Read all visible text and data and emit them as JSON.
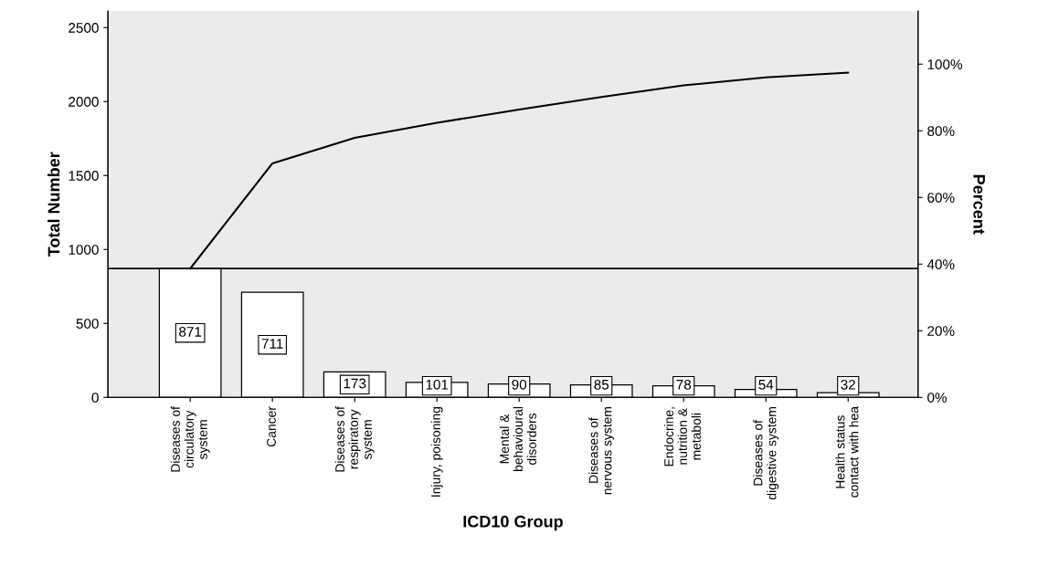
{
  "chart_data": {
    "type": "bar",
    "xlabel": "ICD10 Group",
    "ylabel": "Total Number",
    "y2label": "Percent",
    "categories": [
      "Diseases of\ncirculatory\nsystem",
      "Cancer",
      "Diseases of\nrespiratory\nsystem",
      "Injury, poisoning",
      "Mental &\nbehavioural\ndisorders",
      "Diseases of\nnervous system",
      "Endocrine,\nnutrition &\nmetaboli",
      "Diseases of\ndigestive system",
      "Health status\ncontact with hea"
    ],
    "series": [
      {
        "color": "#ffffff",
        "values": [
          871,
          711,
          173,
          101,
          90,
          85,
          78,
          54,
          32
        ],
        "value_labels": [
          "871",
          "711",
          "173",
          "101",
          "90",
          "85",
          "78",
          "54",
          "32"
        ]
      },
      {
        "type": "line",
        "color": "#000000",
        "values": [
          871,
          1582,
          1755,
          1856,
          1946,
          2031,
          2109,
          2163,
          2195
        ]
      }
    ],
    "ylim": [
      0,
      2611
    ],
    "yticks": [
      0,
      500,
      1000,
      1500,
      2000,
      2500
    ],
    "y2lim": [
      0,
      115.9
    ],
    "y2ticks": [
      {
        "value": 0,
        "label": "0%"
      },
      {
        "value": 20,
        "label": "20%"
      },
      {
        "value": 40,
        "label": "40%"
      },
      {
        "value": 60,
        "label": "60%"
      },
      {
        "value": 80,
        "label": "80%"
      },
      {
        "value": 100,
        "label": "100%"
      }
    ],
    "ref_lines": [
      {
        "axis": "y",
        "value": 871,
        "color": "#000000"
      }
    ],
    "grid": false,
    "legend": false,
    "marker": "none",
    "line_style": "solid"
  }
}
